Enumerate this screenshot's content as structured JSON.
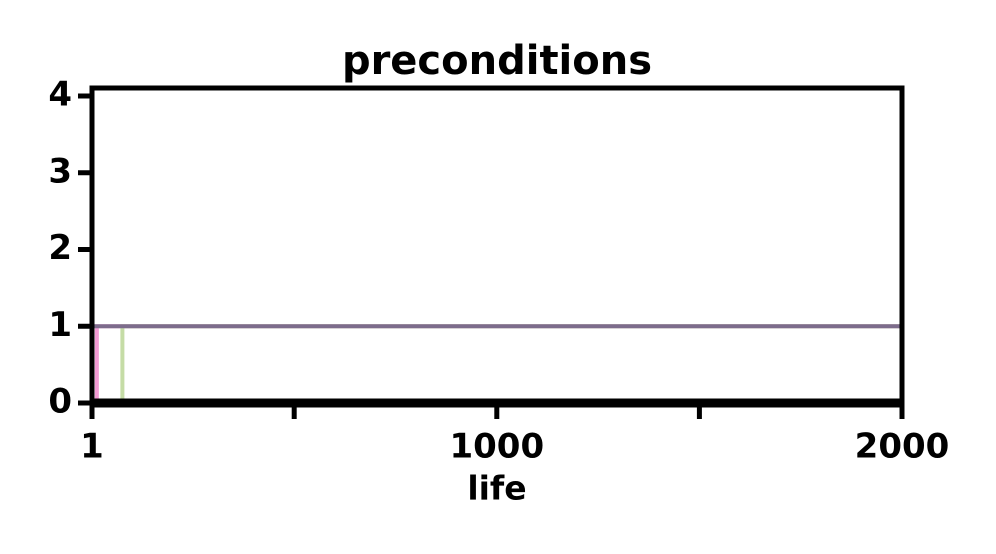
{
  "chart_data": {
    "type": "line",
    "title": "preconditions",
    "x_label": "life",
    "xlim": [
      1,
      2000
    ],
    "xticks": [
      1,
      1000,
      2000
    ],
    "xminorticks": [
      500,
      1500
    ],
    "ylim": [
      0,
      4
    ],
    "yticks": [
      0,
      1,
      2,
      3,
      4
    ],
    "series": [
      {
        "color": "#f29bd4",
        "x": [
          1,
          13,
          13,
          2000
        ],
        "values": [
          0,
          0,
          1,
          1
        ]
      },
      {
        "color": "#c5dca6",
        "x": [
          1,
          76,
          76,
          2000
        ],
        "values": [
          0,
          0,
          1,
          1
        ]
      },
      {
        "color": "#7d6c8c",
        "x": [
          1,
          2000
        ],
        "values": [
          1,
          1
        ]
      }
    ]
  }
}
